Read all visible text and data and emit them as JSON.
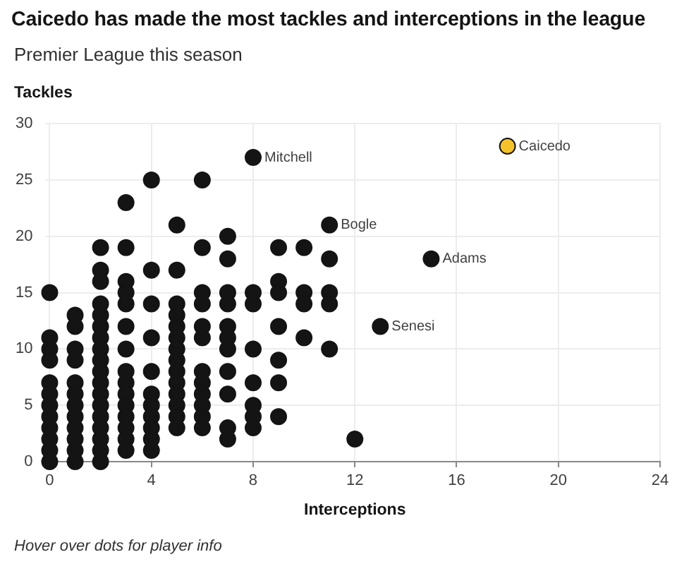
{
  "chart_data": {
    "type": "scatter",
    "title": "Caicedo has made the most tackles and interceptions in the league",
    "subtitle": "Premier League this season",
    "xlabel": "Interceptions",
    "ylabel": "Tackles",
    "series": [
      {
        "color": "#141414",
        "x": [
          0,
          0,
          0,
          0,
          0,
          0,
          0,
          0,
          0,
          0,
          0,
          0,
          1,
          1,
          1,
          1,
          1,
          1,
          1,
          1,
          1,
          1,
          1,
          1,
          2,
          2,
          2,
          2,
          2,
          2,
          2,
          2,
          2,
          2,
          2,
          2,
          2,
          2,
          2,
          2,
          2,
          2,
          3,
          3,
          3,
          3,
          3,
          3,
          3,
          3,
          3,
          3,
          3,
          3,
          3,
          3,
          3,
          4,
          4,
          4,
          4,
          4,
          4,
          4,
          4,
          4,
          4,
          4,
          5,
          5,
          5,
          5,
          5,
          5,
          5,
          5,
          5,
          5,
          5,
          5,
          5,
          5,
          6,
          6,
          6,
          6,
          6,
          6,
          6,
          6,
          6,
          6,
          6,
          6,
          7,
          7,
          7,
          7,
          7,
          7,
          7,
          7,
          7,
          7,
          7,
          8,
          8,
          8,
          8,
          8,
          8,
          8,
          8,
          9,
          9,
          9,
          9,
          9,
          9,
          9,
          10,
          10,
          10,
          10,
          11,
          11,
          11,
          11,
          11,
          12,
          13,
          15
        ],
        "values": [
          15,
          11,
          10,
          9,
          7,
          6,
          5,
          4,
          3,
          2,
          1,
          0,
          13,
          12,
          10,
          9,
          7,
          6,
          5,
          4,
          3,
          2,
          1,
          0,
          19,
          17,
          16,
          14,
          13,
          12,
          11,
          10,
          9,
          8,
          7,
          6,
          5,
          4,
          3,
          2,
          1,
          0,
          23,
          19,
          16,
          15,
          14,
          12,
          10,
          8,
          7,
          6,
          5,
          4,
          3,
          2,
          1,
          25,
          17,
          14,
          11,
          8,
          6,
          5,
          4,
          3,
          2,
          1,
          21,
          17,
          14,
          13,
          12,
          11,
          10,
          9,
          8,
          7,
          6,
          5,
          4,
          3,
          25,
          19,
          15,
          14,
          12,
          11,
          8,
          7,
          6,
          5,
          4,
          3,
          20,
          18,
          15,
          14,
          12,
          11,
          10,
          8,
          6,
          3,
          2,
          27,
          15,
          14,
          10,
          7,
          5,
          4,
          3,
          19,
          16,
          15,
          12,
          9,
          7,
          4,
          19,
          15,
          14,
          11,
          21,
          18,
          15,
          14,
          10,
          2,
          12,
          18
        ]
      },
      {
        "color": "#f5c22b",
        "x": [
          18
        ],
        "values": [
          28
        ]
      }
    ],
    "xlim": [
      0,
      24
    ],
    "xticks": [
      0,
      4,
      8,
      12,
      16,
      20,
      24
    ],
    "ylim": [
      0,
      30
    ],
    "yticks": [
      0,
      5,
      10,
      15,
      20,
      25,
      30
    ],
    "grid": true,
    "legend": false,
    "marker": "circle",
    "annotations": [
      {
        "text": "Mitchell",
        "x": 8,
        "y": 27
      },
      {
        "text": "Bogle",
        "x": 11,
        "y": 21
      },
      {
        "text": "Adams",
        "x": 15,
        "y": 18
      },
      {
        "text": "Senesi",
        "x": 13,
        "y": 12
      },
      {
        "text": "Caicedo",
        "x": 18,
        "y": 28
      },
      "Hover over dots for player info"
    ]
  }
}
